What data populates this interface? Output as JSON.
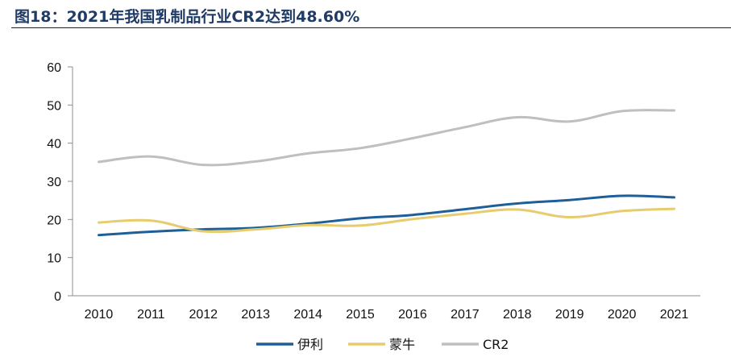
{
  "title": "图18：2021年我国乳制品行业CR2达到48.60%",
  "chart_data": {
    "type": "line",
    "title": "",
    "xlabel": "",
    "ylabel": "",
    "categories": [
      "2010",
      "2011",
      "2012",
      "2013",
      "2014",
      "2015",
      "2016",
      "2017",
      "2018",
      "2019",
      "2020",
      "2021"
    ],
    "ylim": [
      0,
      60
    ],
    "yticks": [
      0,
      10,
      20,
      30,
      40,
      50,
      60
    ],
    "grid": false,
    "legend_position": "bottom",
    "series": [
      {
        "name": "伊利",
        "color": "#1f5f99",
        "values": [
          15.9,
          16.8,
          17.4,
          17.8,
          18.9,
          20.3,
          21.2,
          22.7,
          24.2,
          25.1,
          26.2,
          25.8
        ]
      },
      {
        "name": "蒙牛",
        "color": "#e6cc6e",
        "values": [
          19.2,
          19.7,
          16.9,
          17.4,
          18.5,
          18.4,
          20.1,
          21.5,
          22.6,
          20.6,
          22.2,
          22.8
        ]
      },
      {
        "name": "CR2",
        "color": "#bfbfbf",
        "values": [
          35.1,
          36.5,
          34.3,
          35.2,
          37.3,
          38.7,
          41.3,
          44.2,
          46.8,
          45.7,
          48.4,
          48.6
        ]
      }
    ]
  }
}
